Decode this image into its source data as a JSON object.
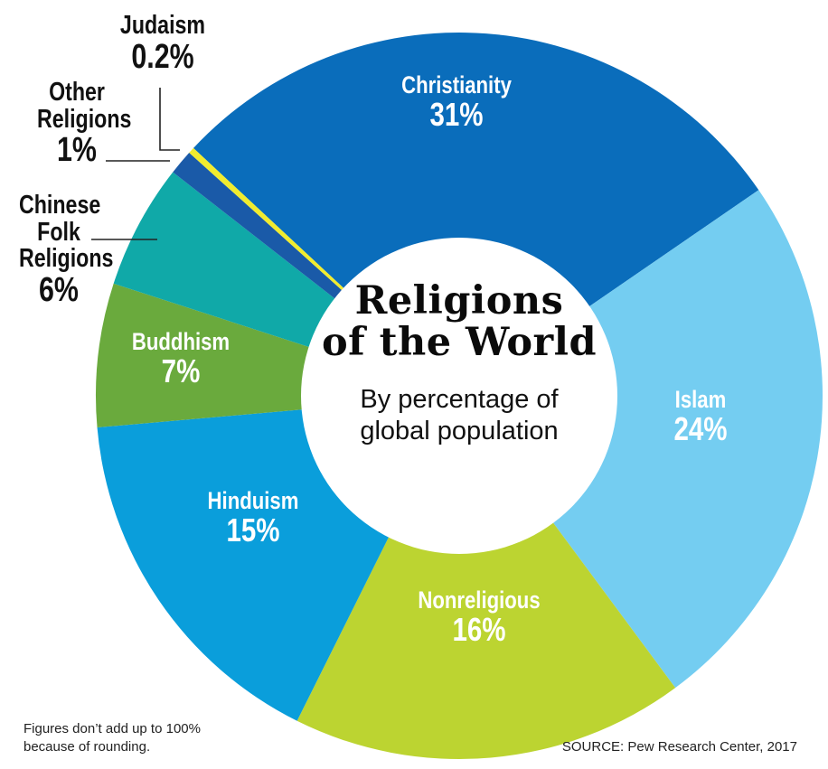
{
  "chart_data": {
    "type": "pie",
    "subtype": "donut",
    "title": "Religions of the World",
    "subtitle": "By percentage of global population",
    "unit": "%",
    "categories": [
      "Christianity",
      "Islam",
      "Nonreligious",
      "Hinduism",
      "Buddhism",
      "Chinese Folk Religions",
      "Other Religions",
      "Judaism"
    ],
    "values": [
      31,
      24,
      16,
      15,
      7,
      6,
      1,
      0.2
    ],
    "labels": [
      "31%",
      "24%",
      "16%",
      "15%",
      "7%",
      "6%",
      "1%",
      "0.2%"
    ],
    "colors": [
      "#0a6dbb",
      "#74cdf1",
      "#bcd431",
      "#0a9edb",
      "#6aaa3d",
      "#10a9a8",
      "#1a5aa8",
      "#f1ec2e"
    ],
    "legend": "none (labels on slices and callouts)",
    "footnote": "Figures don't add up to 100% because of rounding.",
    "source": "SOURCE: Pew Research Center, 2017"
  },
  "title": {
    "line1": "Religions",
    "line2": "of the World",
    "sub1": "By percentage of",
    "sub2": "global population"
  },
  "segments": [
    {
      "name": "Christianity",
      "pct": "31%"
    },
    {
      "name": "Islam",
      "pct": "24%"
    },
    {
      "name": "Nonreligious",
      "pct": "16%"
    },
    {
      "name": "Hinduism",
      "pct": "15%"
    },
    {
      "name": "Buddhism",
      "pct": "7%"
    }
  ],
  "callouts": {
    "chinese": {
      "l1": "Chinese",
      "l2": "Folk",
      "l3": "Religions",
      "pct": "6%"
    },
    "other": {
      "l1": "Other",
      "l2": "Religions",
      "pct": "1%"
    },
    "judaism": {
      "l1": "Judaism",
      "pct": "0.2%"
    }
  },
  "footer": {
    "note_line1": "Figures don’t add up to 100%",
    "note_line2": "because of rounding.",
    "source": "SOURCE: Pew Research Center, 2017"
  }
}
